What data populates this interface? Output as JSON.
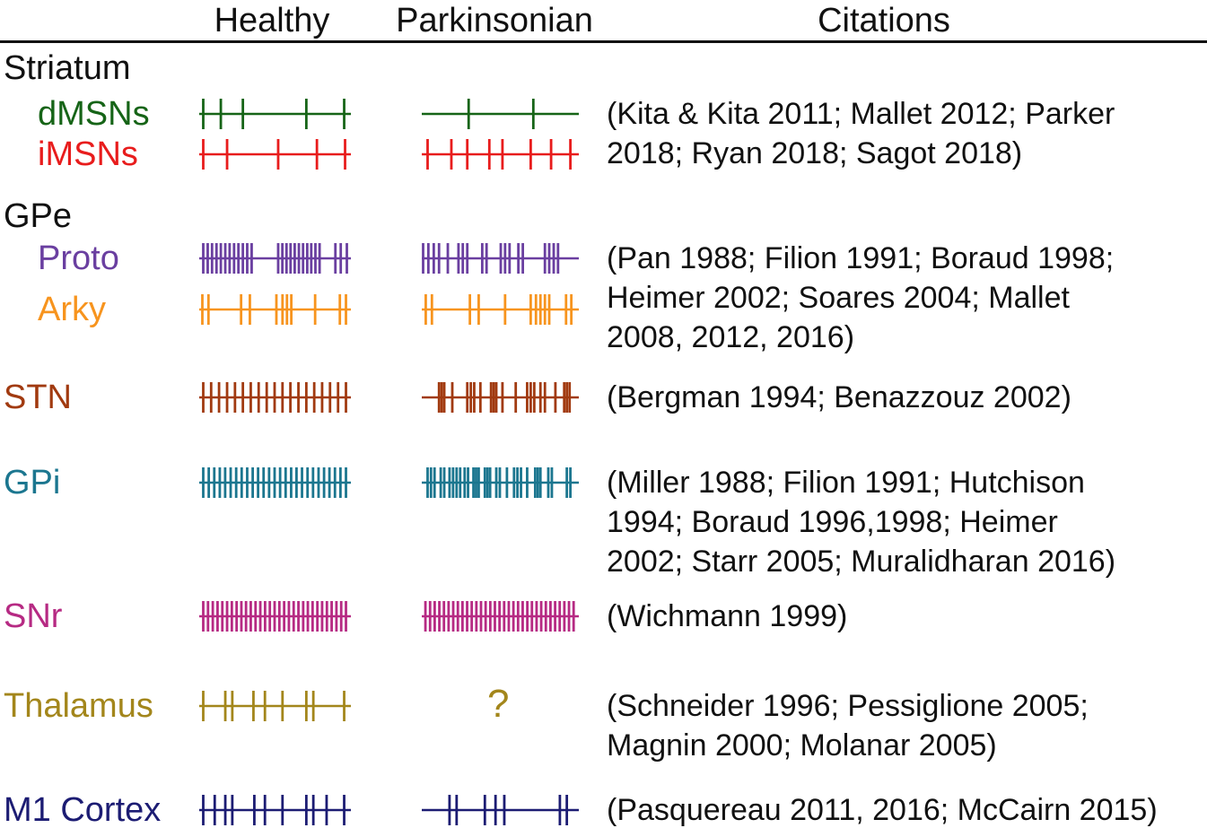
{
  "header": {
    "healthy": "Healthy",
    "parkinsonian": "Parkinsonian",
    "citations": "Citations"
  },
  "colors": {
    "text": "#111111",
    "rule": "#111111"
  },
  "sections": [
    {
      "id": "striatum",
      "title": "Striatum",
      "title_color": "#111111",
      "rows": [
        {
          "id": "dmsns",
          "label": "dMSNs",
          "color": "#166417",
          "healthy": {
            "ticks": [
              0.018,
              0.136,
              0.284,
              0.71,
              0.964
            ]
          },
          "parkinsonian": {
            "ticks": [
              0.295,
              0.714
            ]
          }
        },
        {
          "id": "imsns",
          "label": "iMSNs",
          "color": "#e81c1c",
          "healthy": {
            "ticks": [
              0.018,
              0.178,
              0.521,
              0.781,
              0.97
            ]
          },
          "parkinsonian": {
            "ticks": [
              0.029,
              0.183,
              0.286,
              0.429,
              0.514,
              0.697,
              0.829,
              0.954
            ]
          }
        }
      ],
      "citation_lines": [
        "(Kita & Kita 2011; Mallet 2012; Parker",
        "2018; Ryan 2018; Sagot 2018)"
      ]
    },
    {
      "id": "gpe",
      "title": "GPe",
      "title_color": "#111111",
      "rows": [
        {
          "id": "proto",
          "label": "Proto",
          "color": "#6a3fa0",
          "healthy": {
            "ticks": [
              0.018,
              0.048,
              0.077,
              0.107,
              0.136,
              0.166,
              0.195,
              0.225,
              0.254,
              0.284,
              0.313,
              0.343,
              0.521,
              0.549,
              0.577,
              0.604,
              0.632,
              0.66,
              0.688,
              0.716,
              0.743,
              0.771,
              0.799,
              0.905,
              0.941,
              0.982
            ]
          },
          "parkinsonian": {
            "ticks": [
              0.0,
              0.034,
              0.069,
              0.103,
              0.16,
              0.229,
              0.257,
              0.286,
              0.383,
              0.411,
              0.503,
              0.531,
              0.56,
              0.617,
              0.646,
              0.789,
              0.817,
              0.846,
              0.874
            ]
          }
        },
        {
          "id": "arky",
          "label": "Arky",
          "color": "#f7941e",
          "healthy": {
            "ticks": [
              0.012,
              0.053,
              0.272,
              0.331,
              0.509,
              0.55,
              0.58,
              0.609,
              0.769,
              0.935,
              0.976
            ]
          },
          "parkinsonian": {
            "ticks": [
              0.017,
              0.057,
              0.303,
              0.36,
              0.531,
              0.697,
              0.731,
              0.76,
              0.789,
              0.817,
              0.926,
              0.96
            ]
          }
        }
      ],
      "citation_lines": [
        "(Pan 1988; Filion 1991; Boraud 1998;",
        "Heimer 2002; Soares 2004; Mallet",
        "2008, 2012, 2016)"
      ]
    },
    {
      "id": "stn_sec",
      "title": null,
      "rows": [
        {
          "id": "stn",
          "label": "STN",
          "color": "#a13a10",
          "healthy": {
            "ticks": [
              0.018,
              0.071,
              0.124,
              0.178,
              0.231,
              0.284,
              0.337,
              0.39,
              0.444,
              0.497,
              0.55,
              0.603,
              0.657,
              0.71,
              0.763,
              0.816,
              0.869,
              0.923,
              0.976
            ]
          },
          "parkinsonian": {
            "ticks": [
              0.103,
              0.12,
              0.137,
              0.189,
              0.286,
              0.309,
              0.331,
              0.371,
              0.44,
              0.457,
              0.474,
              0.514,
              0.6,
              0.674,
              0.697,
              0.72,
              0.76,
              0.789,
              0.857,
              0.914,
              0.931,
              0.949
            ]
          }
        }
      ],
      "citation_lines": [
        "(Bergman 1994; Benazzouz 2002)"
      ]
    },
    {
      "id": "gpi_sec",
      "title": null,
      "rows": [
        {
          "id": "gpi",
          "label": "GPi",
          "color": "#1b768f",
          "healthy": {
            "ticks": [
              0.018,
              0.055,
              0.092,
              0.129,
              0.165,
              0.202,
              0.239,
              0.276,
              0.313,
              0.35,
              0.386,
              0.423,
              0.46,
              0.497,
              0.534,
              0.571,
              0.608,
              0.644,
              0.681,
              0.718,
              0.755,
              0.792,
              0.829,
              0.865,
              0.902,
              0.939,
              0.976
            ]
          },
          "parkinsonian": {
            "ticks": [
              0.029,
              0.051,
              0.074,
              0.114,
              0.137,
              0.171,
              0.194,
              0.217,
              0.24,
              0.269,
              0.291,
              0.326,
              0.343,
              0.36,
              0.4,
              0.417,
              0.434,
              0.474,
              0.497,
              0.543,
              0.589,
              0.611,
              0.634,
              0.674,
              0.726,
              0.743,
              0.76,
              0.811,
              0.834,
              0.931,
              0.954
            ]
          }
        }
      ],
      "citation_lines": [
        "(Miller 1988; Filion 1991; Hutchison",
        "1994; Boraud 1996,1998; Heimer",
        "2002; Starr 2005; Muralidharan 2016)"
      ]
    },
    {
      "id": "snr_sec",
      "title": null,
      "rows": [
        {
          "id": "snr",
          "label": "SNr",
          "color": "#b62a83",
          "healthy": {
            "ticks": [
              0.018,
              0.05,
              0.082,
              0.114,
              0.146,
              0.178,
              0.21,
              0.242,
              0.274,
              0.305,
              0.337,
              0.369,
              0.401,
              0.433,
              0.465,
              0.497,
              0.529,
              0.561,
              0.593,
              0.625,
              0.657,
              0.689,
              0.72,
              0.752,
              0.784,
              0.816,
              0.848,
              0.88,
              0.912,
              0.944,
              0.976
            ]
          },
          "parkinsonian": {
            "ticks": [
              0.015,
              0.045,
              0.075,
              0.105,
              0.135,
              0.165,
              0.195,
              0.225,
              0.255,
              0.285,
              0.315,
              0.345,
              0.375,
              0.405,
              0.435,
              0.465,
              0.495,
              0.525,
              0.555,
              0.585,
              0.615,
              0.645,
              0.675,
              0.705,
              0.735,
              0.765,
              0.795,
              0.825,
              0.855,
              0.885,
              0.915,
              0.945,
              0.975
            ]
          }
        }
      ],
      "citation_lines": [
        "(Wichmann 1999)"
      ]
    },
    {
      "id": "thalamus_sec",
      "title": null,
      "rows": [
        {
          "id": "thalamus",
          "label": "Thalamus",
          "color": "#a3861b",
          "healthy": {
            "ticks": [
              0.018,
              0.166,
              0.213,
              0.355,
              0.432,
              0.55,
              0.71,
              0.757,
              0.964
            ]
          },
          "parkinsonian": {
            "symbol": "?"
          }
        }
      ],
      "citation_lines": [
        "(Schneider 1996; Pessiglione 2005;",
        "Magnin 2000; Molanar 2005)"
      ]
    },
    {
      "id": "m1_sec",
      "title": null,
      "rows": [
        {
          "id": "m1",
          "label": "M1 Cortex",
          "color": "#1c1c73",
          "healthy": {
            "ticks": [
              0.018,
              0.095,
              0.166,
              0.213,
              0.361,
              0.432,
              0.55,
              0.71,
              0.757,
              0.846,
              0.964
            ]
          },
          "parkinsonian": {
            "ticks": [
              0.171,
              0.217,
              0.4,
              0.469,
              0.526,
              0.886,
              0.931
            ]
          }
        }
      ],
      "citation_lines": [
        "(Pasquereau 2011, 2016; McCairn 2015)"
      ]
    }
  ]
}
